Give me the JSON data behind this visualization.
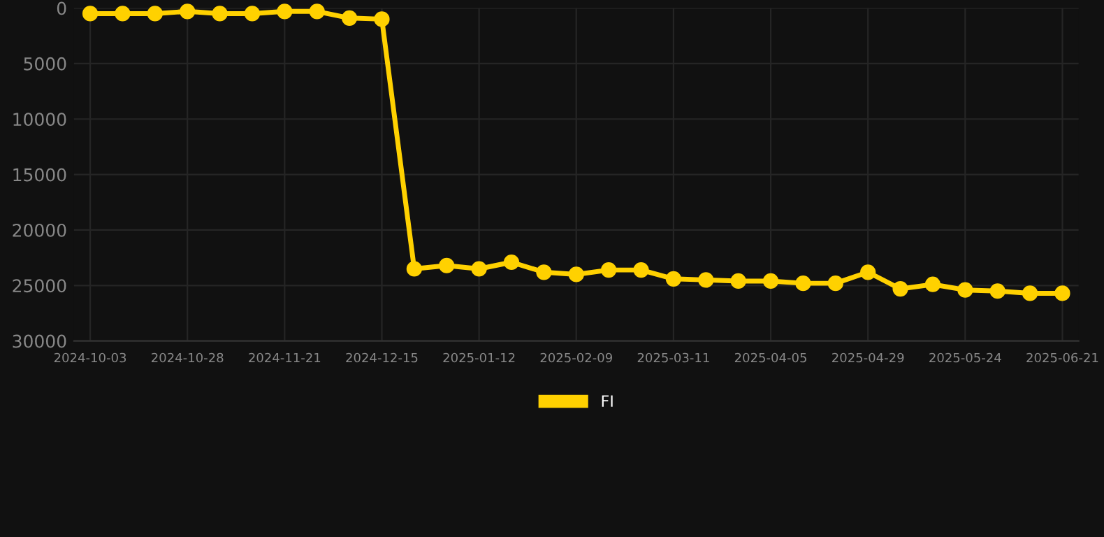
{
  "chart_data": {
    "type": "line",
    "categories": [
      "2024-10-03",
      null,
      null,
      "2024-10-28",
      null,
      null,
      "2024-11-21",
      null,
      null,
      "2024-12-15",
      null,
      null,
      "2025-01-12",
      null,
      null,
      "2025-02-09",
      null,
      null,
      "2025-03-11",
      null,
      null,
      "2025-04-05",
      null,
      null,
      "2025-04-29",
      null,
      null,
      "2025-05-24",
      null,
      null,
      "2025-06-21"
    ],
    "series": [
      {
        "name": "FI",
        "color": "#ffd100",
        "values": [
          500,
          500,
          500,
          300,
          500,
          500,
          300,
          300,
          900,
          1000,
          23500,
          23200,
          23500,
          22900,
          23800,
          24000,
          23600,
          23600,
          24400,
          24500,
          24600,
          24600,
          24800,
          24800,
          23800,
          25300,
          24900,
          25400,
          25500,
          25700,
          25700
        ]
      }
    ],
    "ylim": [
      30000,
      0
    ],
    "yticks": [
      0,
      5000,
      10000,
      15000,
      20000,
      25000,
      30000
    ],
    "grid": true,
    "legend": "bottom",
    "marker": "circle",
    "line_style": "solid"
  }
}
